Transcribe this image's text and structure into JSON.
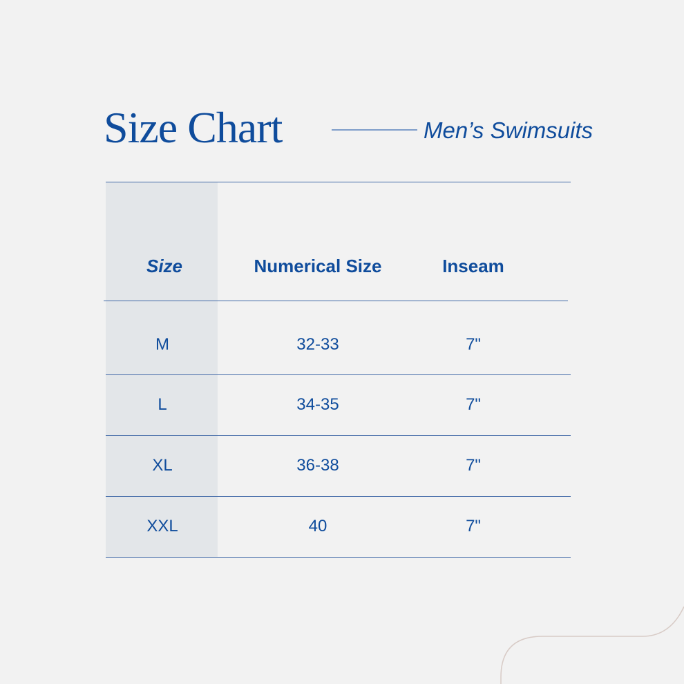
{
  "title": "Size Chart",
  "subtitle": "Men’s Swimsuits",
  "table": {
    "headers": [
      "Size",
      "Numerical Size",
      "Inseam"
    ],
    "rows": [
      [
        "M",
        "32-33",
        "7\""
      ],
      [
        "L",
        "34-35",
        "7\""
      ],
      [
        "XL",
        "36-38",
        "7\""
      ],
      [
        "XXL",
        "40",
        "7\""
      ]
    ]
  },
  "colors": {
    "text": "#0f4c9c",
    "shade": "#e3e6e9",
    "background": "#f2f2f2",
    "decor": "#d8cbc6"
  }
}
